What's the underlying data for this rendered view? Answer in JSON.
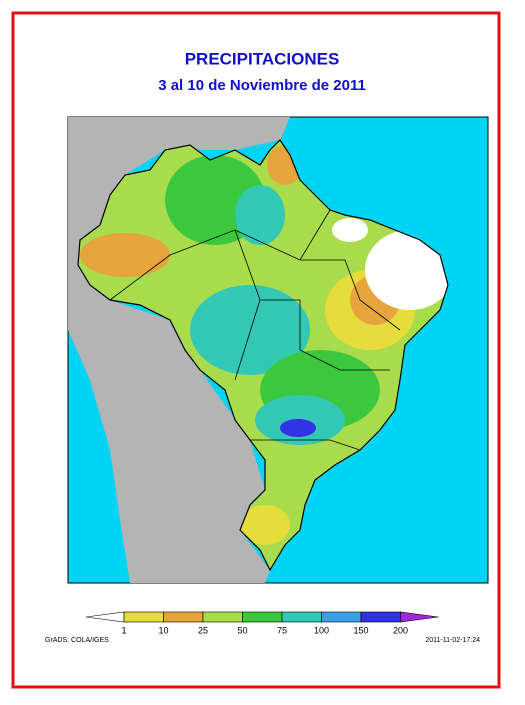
{
  "header": {
    "title": "PRECIPITACIONES",
    "subtitle": "3 al 10 de Noviembre de 2011"
  },
  "legend": {
    "labels": [
      "1",
      "10",
      "25",
      "50",
      "75",
      "100",
      "150",
      "200"
    ],
    "colors": [
      "#ffffff",
      "#e6dc3c",
      "#e6a53c",
      "#a8dc4c",
      "#3cc83c",
      "#32c8b4",
      "#3ca0e6",
      "#3232e6",
      "#a028dc"
    ]
  },
  "footer": {
    "credit": "GrADS: COLA/IGES",
    "timestamp": "2011-11-02-17:24"
  }
}
